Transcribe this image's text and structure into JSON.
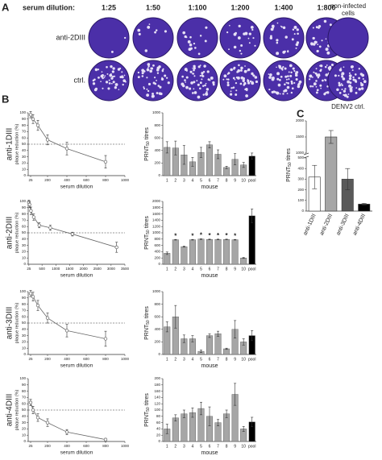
{
  "panel_labels": [
    "A",
    "B",
    "C"
  ],
  "panel_a": {
    "header": "serum dilution:",
    "dilutions": [
      "1:25",
      "1:50",
      "1:100",
      "1:200",
      "1:400",
      "1:800"
    ],
    "rows": [
      "anti-2DIII",
      "ctrl."
    ],
    "side_title_lines": [
      "non-infected",
      "cells"
    ],
    "side_caption": "DENV2 ctrl."
  },
  "chart_data": [
    {
      "type": "line",
      "row_label": "anti-1DIII",
      "x": [
        25,
        50,
        100,
        200,
        400,
        800
      ],
      "values": [
        97,
        90,
        80,
        57,
        43,
        22
      ],
      "errors": [
        5,
        7,
        8,
        8,
        10,
        10
      ],
      "xlim": [
        0,
        1000
      ],
      "xticks": [
        25,
        200,
        400,
        600,
        800,
        1000
      ],
      "ylim": [
        0,
        100
      ],
      "yticks": [
        0,
        10,
        20,
        30,
        40,
        50,
        60,
        70,
        80,
        90,
        100
      ],
      "x_label": "serum dilution",
      "y_label": "plaque reduction (%)",
      "reference_line": 50,
      "color": "#666666"
    },
    {
      "type": "bar",
      "categories": [
        "1",
        "2",
        "3",
        "4",
        "5",
        "6",
        "7",
        "8",
        "9",
        "10",
        "pool"
      ],
      "values": [
        450,
        440,
        330,
        220,
        370,
        490,
        340,
        130,
        260,
        170,
        310
      ],
      "errors": [
        90,
        110,
        150,
        70,
        80,
        50,
        70,
        20,
        90,
        40,
        50
      ],
      "colors": [
        "#a6a6a6",
        "#a6a6a6",
        "#a6a6a6",
        "#a6a6a6",
        "#a6a6a6",
        "#a6a6a6",
        "#a6a6a6",
        "#a6a6a6",
        "#a6a6a6",
        "#a6a6a6",
        "#000000"
      ],
      "ylim": [
        0,
        1000
      ],
      "yticks": [
        0,
        200,
        400,
        600,
        800,
        1000
      ],
      "x_label": "mouse",
      "y_label_parts": [
        "PRNT",
        "50",
        "titres"
      ]
    },
    {
      "type": "line",
      "row_label": "anti-2DIII",
      "x": [
        25,
        50,
        100,
        200,
        400,
        800,
        1600,
        3200
      ],
      "values": [
        98,
        95,
        85,
        75,
        62,
        58,
        48,
        27
      ],
      "errors": [
        4,
        5,
        6,
        5,
        4,
        4,
        3,
        8
      ],
      "xlim": [
        0,
        3500
      ],
      "xticks": [
        25,
        500,
        1000,
        1500,
        2000,
        2500,
        3000,
        3500
      ],
      "ylim": [
        0,
        100
      ],
      "yticks": [
        0,
        10,
        20,
        30,
        40,
        50,
        60,
        70,
        80,
        90,
        100
      ],
      "x_label": "serum dilution",
      "y_label": "plaque reduction (%)",
      "reference_line": 50,
      "color": "#666666"
    },
    {
      "type": "bar",
      "categories": [
        "1",
        "2",
        "3",
        "4",
        "5",
        "6",
        "7",
        "8",
        "9",
        "10",
        "pool"
      ],
      "values": [
        350,
        780,
        560,
        780,
        800,
        790,
        790,
        790,
        780,
        200,
        1540
      ],
      "errors": [
        40,
        10,
        15,
        10,
        10,
        10,
        10,
        10,
        10,
        15,
        220
      ],
      "annotations": [
        null,
        "*",
        null,
        "*",
        "*",
        "*",
        "*",
        "*",
        "*",
        null,
        null
      ],
      "colors": [
        "#a6a6a6",
        "#a6a6a6",
        "#a6a6a6",
        "#a6a6a6",
        "#a6a6a6",
        "#a6a6a6",
        "#a6a6a6",
        "#a6a6a6",
        "#a6a6a6",
        "#a6a6a6",
        "#000000"
      ],
      "ylim": [
        0,
        2000
      ],
      "yticks": [
        0,
        200,
        400,
        600,
        800,
        1000,
        1200,
        1400,
        1600,
        1800,
        2000
      ],
      "x_label": "mouse",
      "y_label_parts": [
        "PRNT",
        "50",
        "titres"
      ]
    },
    {
      "type": "line",
      "row_label": "anti-3DIII",
      "x": [
        25,
        50,
        100,
        200,
        400,
        800
      ],
      "values": [
        97,
        92,
        78,
        58,
        38,
        25
      ],
      "errors": [
        5,
        7,
        8,
        8,
        10,
        12
      ],
      "xlim": [
        0,
        1000
      ],
      "xticks": [
        25,
        200,
        400,
        600,
        800,
        1000
      ],
      "ylim": [
        0,
        100
      ],
      "yticks": [
        0,
        10,
        20,
        30,
        40,
        50,
        60,
        70,
        80,
        90,
        100
      ],
      "x_label": "serum dilution",
      "y_label": "plaque reduction (%)",
      "reference_line": 50,
      "color": "#666666"
    },
    {
      "type": "bar",
      "categories": [
        "1",
        "2",
        "3",
        "4",
        "5",
        "6",
        "7",
        "8",
        "9",
        "10",
        "pool"
      ],
      "values": [
        440,
        600,
        250,
        250,
        50,
        300,
        330,
        90,
        400,
        200,
        300
      ],
      "errors": [
        80,
        180,
        60,
        50,
        20,
        30,
        40,
        10,
        140,
        50,
        80
      ],
      "colors": [
        "#a6a6a6",
        "#a6a6a6",
        "#a6a6a6",
        "#a6a6a6",
        "#a6a6a6",
        "#a6a6a6",
        "#a6a6a6",
        "#a6a6a6",
        "#a6a6a6",
        "#a6a6a6",
        "#000000"
      ],
      "ylim": [
        0,
        1000
      ],
      "yticks": [
        0,
        200,
        400,
        600,
        800,
        1000
      ],
      "x_label": "mouse",
      "y_label_parts": [
        "PRNT",
        "50",
        "titres"
      ]
    },
    {
      "type": "line",
      "row_label": "anti-4DIII",
      "x": [
        25,
        50,
        100,
        200,
        400,
        800
      ],
      "values": [
        62,
        50,
        38,
        30,
        15,
        3
      ],
      "errors": [
        5,
        6,
        6,
        6,
        4,
        2
      ],
      "xlim": [
        0,
        1000
      ],
      "xticks": [
        25,
        200,
        400,
        600,
        800,
        1000
      ],
      "ylim": [
        0,
        100
      ],
      "yticks": [
        0,
        10,
        20,
        30,
        40,
        50,
        60,
        70,
        80,
        90,
        100
      ],
      "x_label": "serum dilution",
      "y_label": "plaque reduction (%)",
      "reference_line": 50,
      "color": "#666666"
    },
    {
      "type": "bar",
      "categories": [
        "1",
        "2",
        "3",
        "4",
        "5",
        "6",
        "7",
        "8",
        "9",
        "10",
        "pool"
      ],
      "values": [
        40,
        75,
        88,
        92,
        105,
        80,
        60,
        88,
        150,
        40,
        62
      ],
      "errors": [
        15,
        10,
        12,
        15,
        20,
        30,
        10,
        12,
        35,
        8,
        15
      ],
      "colors": [
        "#a6a6a6",
        "#a6a6a6",
        "#a6a6a6",
        "#a6a6a6",
        "#a6a6a6",
        "#a6a6a6",
        "#a6a6a6",
        "#a6a6a6",
        "#a6a6a6",
        "#a6a6a6",
        "#000000"
      ],
      "ylim": [
        0,
        200
      ],
      "yticks": [
        0,
        20,
        40,
        60,
        80,
        100,
        120,
        140,
        160,
        180,
        200
      ],
      "x_label": "mouse",
      "y_label_parts": [
        "PRNT",
        "50",
        "titres"
      ]
    },
    {
      "type": "bar",
      "categories": [
        "anti-1DIII",
        "anti-2DIII",
        "anti-3DIII",
        "anti-4DIII"
      ],
      "values": [
        320,
        1500,
        300,
        65
      ],
      "errors": [
        110,
        200,
        100,
        8
      ],
      "colors": [
        "#ffffff",
        "#a6a6a6",
        "#595959",
        "#000000"
      ],
      "ylim": [
        0,
        2000
      ],
      "axis_break": [
        500,
        1000
      ],
      "yticks": [
        0,
        100,
        200,
        300,
        400,
        500,
        1000,
        1500,
        2000
      ],
      "y_label_parts": [
        "PRNT",
        "50",
        "titres"
      ]
    }
  ]
}
